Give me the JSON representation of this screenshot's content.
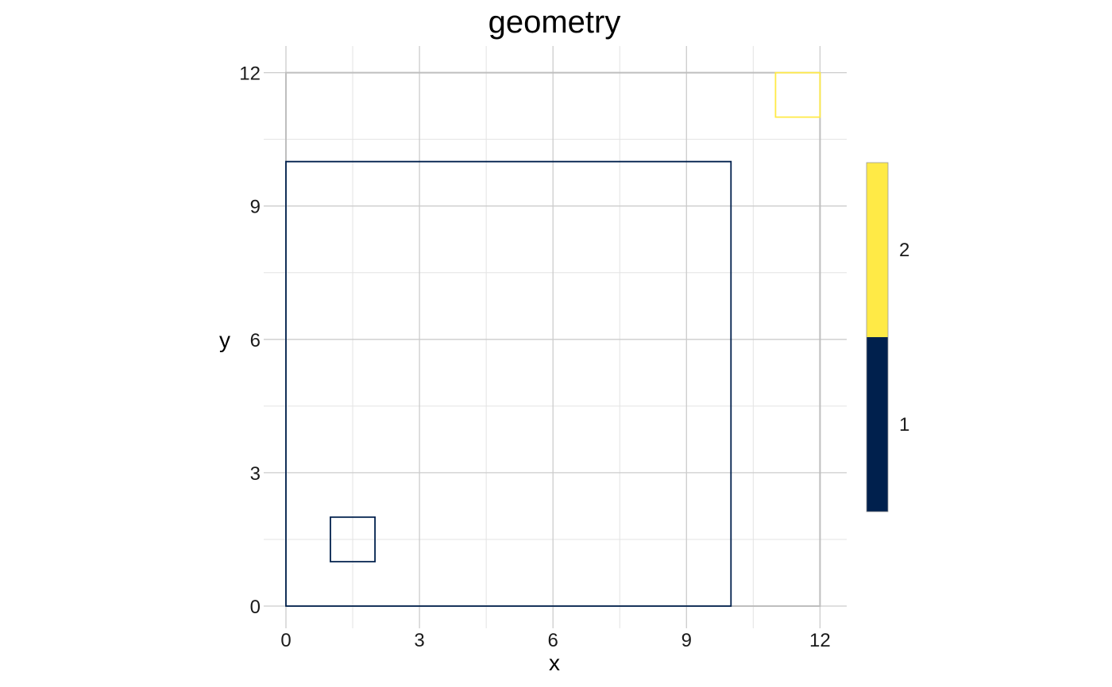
{
  "chart_data": {
    "type": "polygon",
    "title": "geometry",
    "xlabel": "x",
    "ylabel": "y",
    "xlim": [
      -0.5,
      12.6
    ],
    "ylim": [
      -0.5,
      12.6
    ],
    "x_ticks": [
      0,
      3,
      6,
      9,
      12
    ],
    "y_ticks": [
      0,
      3,
      6,
      9,
      12
    ],
    "x_minor": [
      1.5,
      4.5,
      7.5,
      10.5
    ],
    "y_minor": [
      1.5,
      4.5,
      7.5,
      10.5
    ],
    "grid": true,
    "legend_position": "right",
    "polygons": [
      {
        "group": "1",
        "color": "#00204D",
        "points": [
          [
            0,
            0
          ],
          [
            10,
            0
          ],
          [
            10,
            10
          ],
          [
            0,
            10
          ]
        ]
      },
      {
        "group": "1",
        "color": "#00204D",
        "points": [
          [
            1,
            1
          ],
          [
            2,
            1
          ],
          [
            2,
            2
          ],
          [
            1,
            2
          ]
        ]
      },
      {
        "group": "2",
        "color": "#FFEA46",
        "points": [
          [
            11,
            11
          ],
          [
            12,
            11
          ],
          [
            12,
            12
          ],
          [
            11,
            12
          ]
        ]
      }
    ],
    "lines": [
      {
        "color": "#BEBEBE",
        "points": [
          [
            0,
            0
          ],
          [
            12,
            0
          ],
          [
            12,
            12
          ],
          [
            0,
            12
          ],
          [
            0,
            0
          ]
        ]
      }
    ],
    "legend": {
      "items": [
        {
          "label": "2",
          "color": "#FFEA46"
        },
        {
          "label": "1",
          "color": "#00204D"
        }
      ]
    }
  }
}
